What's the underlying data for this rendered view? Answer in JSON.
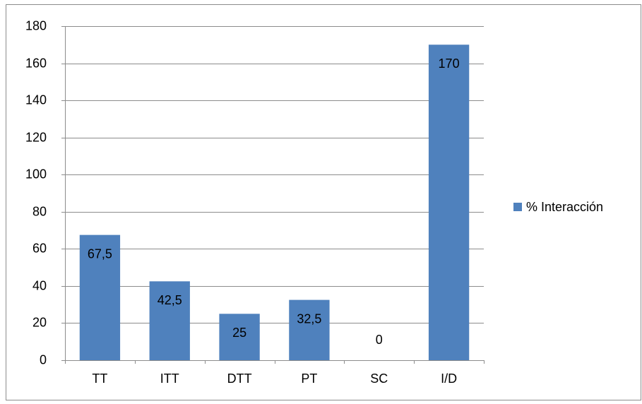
{
  "chart_data": {
    "type": "bar",
    "categories": [
      "TT",
      "ITT",
      "DTT",
      "PT",
      "SC",
      "I/D"
    ],
    "series": [
      {
        "name": "% Interacción",
        "color": "#4f81bd",
        "values": [
          67.5,
          42.5,
          25,
          32.5,
          0,
          170
        ],
        "value_labels": [
          "67,5",
          "42,5",
          "25",
          "32,5",
          "0",
          "170"
        ]
      }
    ],
    "ylim": [
      0,
      180
    ],
    "yticks": [
      0,
      20,
      40,
      60,
      80,
      100,
      120,
      140,
      160,
      180
    ],
    "grid": true,
    "legend": "right"
  }
}
